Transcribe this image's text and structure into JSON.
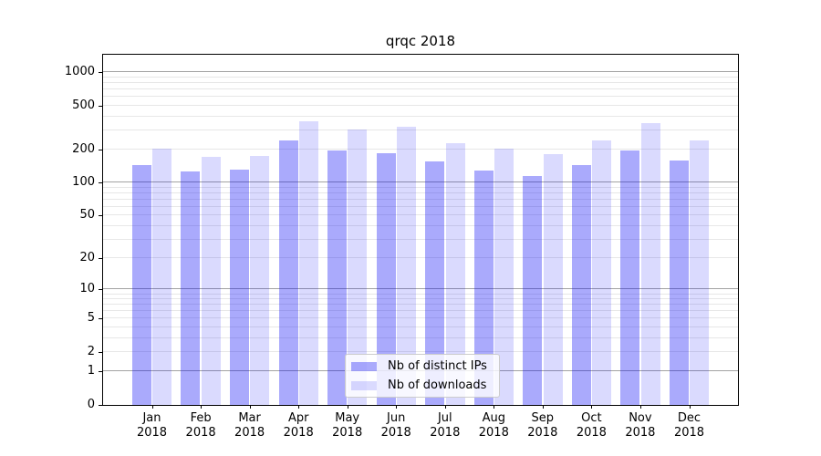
{
  "chart_data": {
    "type": "bar",
    "title": "qrqc 2018",
    "categories": [
      "Jan",
      "Feb",
      "Mar",
      "Apr",
      "May",
      "Jun",
      "Jul",
      "Aug",
      "Sep",
      "Oct",
      "Nov",
      "Dec"
    ],
    "category_year": "2018",
    "series": [
      {
        "name": "Nb of distinct IPs",
        "color_hex": "#0a0af5",
        "alpha": 0.345,
        "values": [
          144,
          128,
          131,
          243,
          197,
          184,
          156,
          129,
          116,
          146,
          197,
          158
        ]
      },
      {
        "name": "Nb of downloads",
        "color_hex": "#0a0af5",
        "alpha": 0.15,
        "values": [
          204,
          173,
          176,
          362,
          302,
          320,
          230,
          205,
          181,
          244,
          351,
          241
        ]
      }
    ],
    "y_axis": {
      "scale": "log1p",
      "ticks": [
        0,
        1,
        2,
        5,
        10,
        20,
        50,
        100,
        200,
        500,
        1000
      ],
      "major_grid": [
        1,
        10,
        100,
        1000
      ],
      "minor_grid_mantissas": [
        2,
        3,
        4,
        5,
        6,
        7,
        8,
        9
      ],
      "ylim": [
        0,
        1440
      ]
    },
    "legend": {
      "position": "lower center"
    },
    "grid": true,
    "colors": {
      "major_grid": "#a3a3a3",
      "minor_grid": "#e7e7e7",
      "spine": "#000000",
      "background": "#ffffff"
    }
  }
}
